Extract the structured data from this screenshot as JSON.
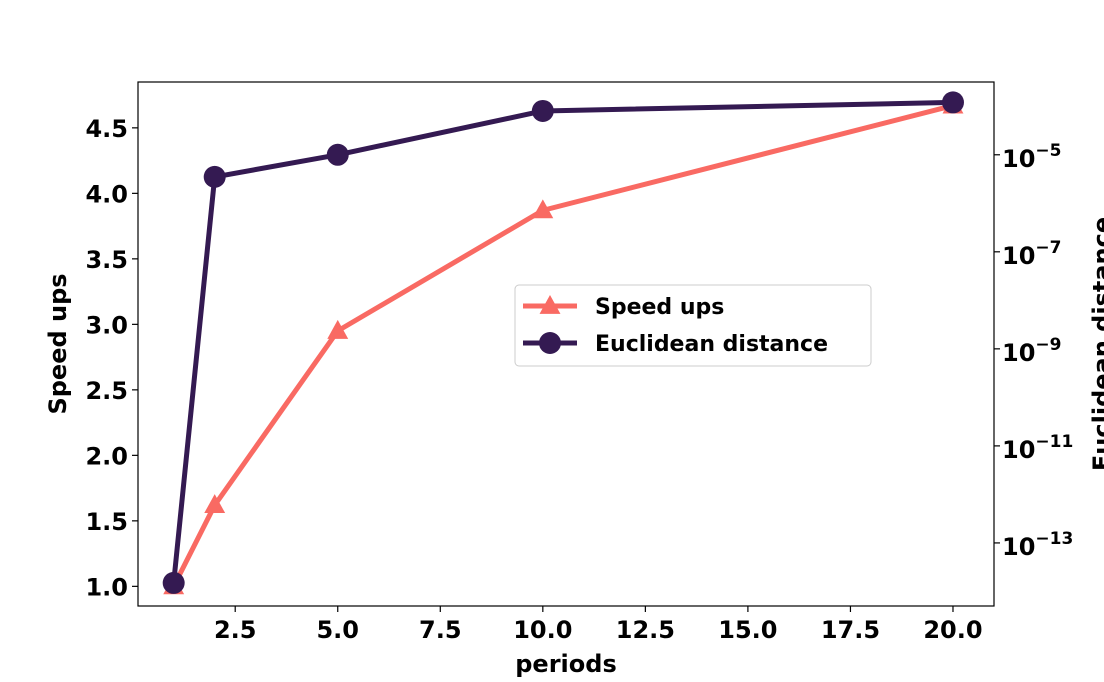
{
  "chart_data": {
    "type": "line",
    "xlabel": "periods",
    "ylabel": "Speed ups",
    "y2label": "Euclidean distance",
    "xlim": [
      0.13,
      21.0
    ],
    "ylim": [
      0.85,
      4.85
    ],
    "y2lim_log10": [
      -14.3,
      -3.5
    ],
    "y2scale": "log",
    "xticks": [
      "2.5",
      "5.0",
      "7.5",
      "10.0",
      "12.5",
      "15.0",
      "17.5",
      "20.0"
    ],
    "xtick_values": [
      2.5,
      5.0,
      7.5,
      10.0,
      12.5,
      15.0,
      17.5,
      20.0
    ],
    "yticks": [
      "1.0",
      "1.5",
      "2.0",
      "2.5",
      "3.0",
      "3.5",
      "4.0",
      "4.5"
    ],
    "ytick_values": [
      1.0,
      1.5,
      2.0,
      2.5,
      3.0,
      3.5,
      4.0,
      4.5
    ],
    "y2ticks": [
      {
        "base": "10",
        "exp": "−5",
        "log10": -5
      },
      {
        "base": "10",
        "exp": "−7",
        "log10": -7
      },
      {
        "base": "10",
        "exp": "−9",
        "log10": -9
      },
      {
        "base": "10",
        "exp": "−11",
        "log10": -11
      },
      {
        "base": "10",
        "exp": "−13",
        "log10": -13
      }
    ],
    "x": [
      1,
      2,
      5,
      10,
      20
    ],
    "series": [
      {
        "name": "Speed ups",
        "axis": "left",
        "marker": "triangle",
        "color": "#f96a63",
        "values": [
          1.0,
          1.62,
          2.95,
          3.87,
          4.67
        ]
      },
      {
        "name": "Euclidean distance",
        "axis": "right",
        "marker": "circle",
        "color": "#341a52",
        "values": [
          1.5e-14,
          3.5e-06,
          1e-05,
          8e-05,
          0.00012
        ]
      }
    ],
    "legend": {
      "placement": "center-right"
    },
    "grid": false
  }
}
